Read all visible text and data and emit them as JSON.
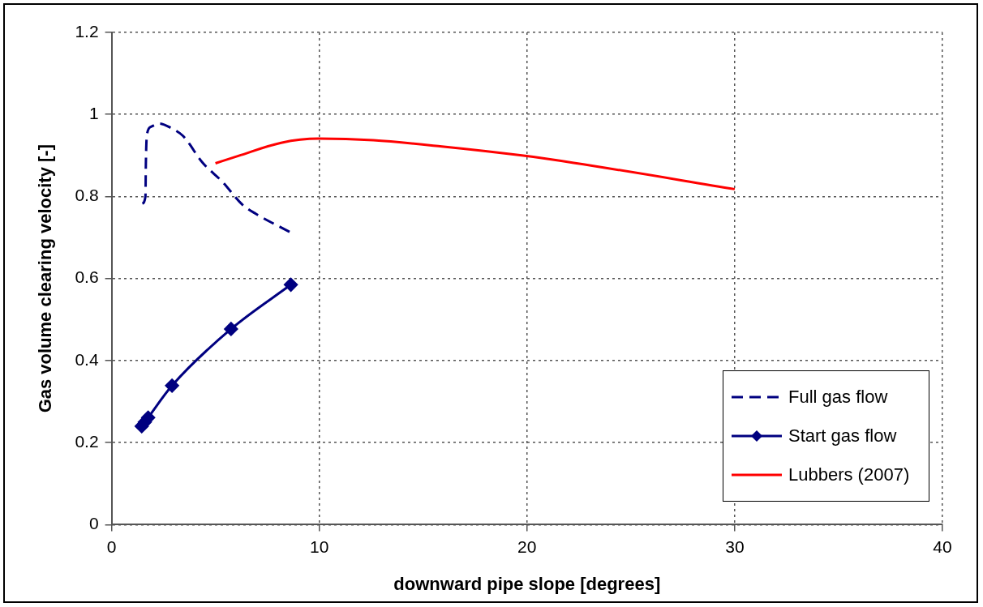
{
  "chart_data": {
    "type": "line",
    "xlabel": "downward pipe slope [degrees]",
    "ylabel": "Gas volume clearing velocity [-]",
    "xlim": [
      0,
      40
    ],
    "xticks": [
      0,
      10,
      20,
      30,
      40
    ],
    "ylim": [
      0,
      1.2
    ],
    "yticks": [
      0,
      0.2,
      0.4,
      0.6,
      0.8,
      1,
      1.2
    ],
    "grid": true,
    "legend": "bottom right",
    "series": [
      {
        "name": "Full gas flow",
        "color": "#000080",
        "line_style": "dashed",
        "marker": "none",
        "x": [
          1.48,
          1.63,
          1.65,
          1.7,
          1.9,
          2.3,
          2.9,
          3.43,
          4.39,
          5.33,
          6.3,
          6.97,
          8.6
        ],
        "values": [
          0.783,
          0.8,
          0.88,
          0.95,
          0.97,
          0.978,
          0.966,
          0.948,
          0.882,
          0.836,
          0.78,
          0.757,
          0.713
        ]
      },
      {
        "name": "Start gas flow",
        "color": "#000080",
        "line_style": "solid",
        "marker": "diamond",
        "x": [
          1.45,
          1.6,
          1.76,
          2.91,
          5.75,
          8.63
        ],
        "values": [
          0.24,
          0.25,
          0.261,
          0.339,
          0.477,
          0.585
        ]
      },
      {
        "name": "Lubbers (2007)",
        "color": "#ff0000",
        "line_style": "solid",
        "marker": "none",
        "x": [
          5.0,
          6.1,
          8.16,
          9.96,
          12.6,
          15.9,
          19.75,
          22.25,
          30
        ],
        "values": [
          0.881,
          0.899,
          0.931,
          0.941,
          0.937,
          0.922,
          0.9,
          0.882,
          0.818
        ]
      }
    ]
  }
}
